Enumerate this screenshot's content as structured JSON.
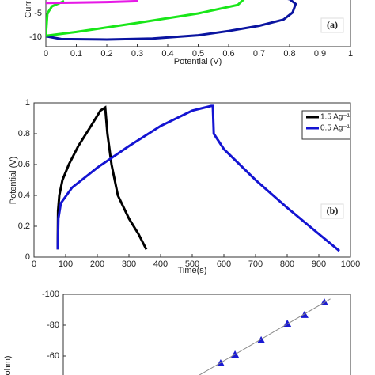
{
  "chart_data": [
    {
      "type": "line",
      "ylabel": "Curr",
      "xlabel": "Potential (V)",
      "annotation": "(a)",
      "xlim": [
        0,
        1
      ],
      "xticks": [
        0,
        0.1,
        0.2,
        0.3,
        0.4,
        0.5,
        0.6,
        0.7,
        0.8,
        0.9,
        1
      ],
      "ylim": [
        -12,
        0
      ],
      "yticks": [
        -10,
        -5
      ],
      "series": [
        {
          "color": "#0a14a0",
          "x": [
            0,
            0.05,
            0.2,
            0.35,
            0.5,
            0.6,
            0.7,
            0.78,
            0.81,
            0.82,
            0.8,
            0.72
          ],
          "values": [
            -9.8,
            -10.4,
            -10.5,
            -10.3,
            -9.6,
            -8.7,
            -7.6,
            -6.3,
            -4.8,
            -3,
            -2,
            -1
          ]
        },
        {
          "color": "#19e619",
          "x": [
            0.06,
            0.02,
            0.005,
            0,
            0.1,
            0.3,
            0.5,
            0.63,
            0.65
          ],
          "values": [
            -2.4,
            -3.5,
            -5,
            -9.7,
            -8.9,
            -7,
            -5,
            -3.2,
            -2
          ]
        },
        {
          "color": "#e619e6",
          "x": [
            0,
            0.1,
            0.2,
            0.3,
            0.3,
            0.2,
            0.1,
            0
          ],
          "values": [
            -2.8,
            -2.7,
            -2.6,
            -2.4,
            -1.6,
            -1.7,
            -1.8,
            -1.9
          ]
        }
      ]
    },
    {
      "type": "line",
      "ylabel": "Potential (V)",
      "xlabel": "Time(s)",
      "annotation": "(b)",
      "legend": "upper right",
      "xlim": [
        0,
        1000
      ],
      "xticks": [
        0,
        100,
        200,
        300,
        400,
        500,
        600,
        700,
        800,
        900,
        1000
      ],
      "ylim": [
        0,
        1
      ],
      "yticks": [
        0,
        0.2,
        0.4,
        0.6,
        0.8,
        1
      ],
      "series": [
        {
          "name": "1.5 Ag⁻¹",
          "color": "#000000",
          "x": [
            75,
            76,
            80,
            90,
            110,
            140,
            180,
            210,
            225,
            232,
            245,
            265,
            300,
            330,
            355
          ],
          "values": [
            0.05,
            0.3,
            0.4,
            0.5,
            0.6,
            0.72,
            0.85,
            0.95,
            0.97,
            0.8,
            0.6,
            0.4,
            0.25,
            0.15,
            0.05
          ]
        },
        {
          "name": "0.5 Ag⁻¹",
          "color": "#1414d2",
          "x": [
            75,
            77,
            85,
            120,
            200,
            300,
            400,
            500,
            560,
            565,
            568,
            600,
            700,
            800,
            900,
            965
          ],
          "values": [
            0.05,
            0.25,
            0.35,
            0.45,
            0.58,
            0.72,
            0.85,
            0.95,
            0.98,
            0.98,
            0.8,
            0.7,
            0.5,
            0.32,
            0.15,
            0.04
          ]
        }
      ]
    },
    {
      "type": "scatter",
      "ylabel": "ohm)",
      "xlim": [
        0,
        100
      ],
      "ylim": [
        -40,
        -100
      ],
      "yticks": [
        -100,
        -80,
        -60
      ],
      "series": [
        {
          "color": "#1a1ad2",
          "marker": "triangle",
          "x": [
            54.8,
            59.8,
            68.9,
            78,
            84,
            90.9
          ],
          "values": [
            -55.4,
            -61,
            -70.3,
            -81,
            -86.7,
            -94.9
          ]
        },
        {
          "color": "#888888",
          "marker": "line",
          "x": [
            44,
            93
          ],
          "values": [
            -44,
            -97
          ]
        }
      ]
    }
  ]
}
